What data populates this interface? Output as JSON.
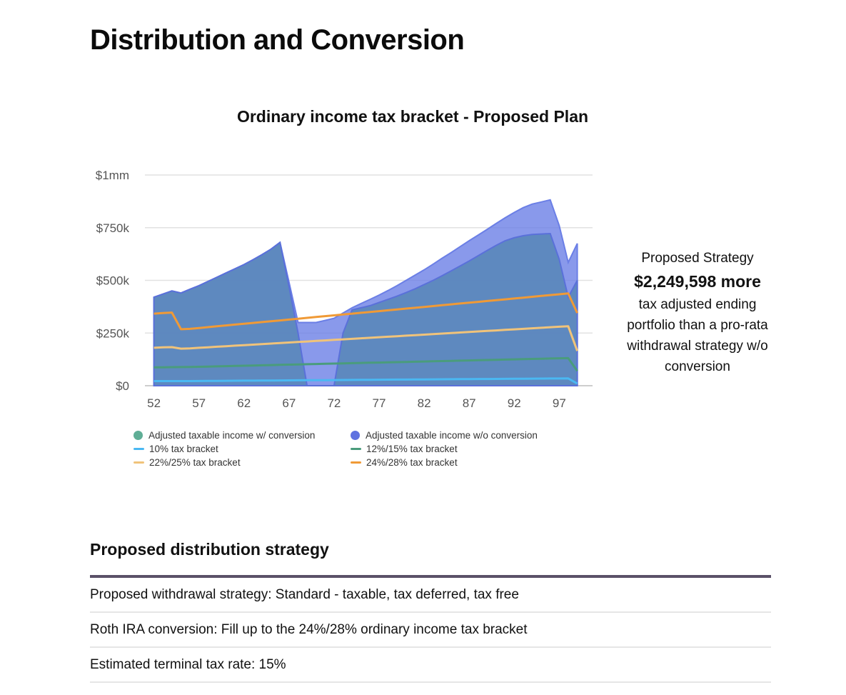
{
  "page": {
    "title": "Distribution and Conversion"
  },
  "chart_data": {
    "type": "area",
    "title": "Ordinary income tax bracket - Proposed Plan",
    "xlabel": "",
    "ylabel": "",
    "x": [
      52,
      53,
      54,
      55,
      56,
      57,
      58,
      59,
      60,
      61,
      62,
      63,
      64,
      65,
      66,
      67,
      68,
      69,
      70,
      71,
      72,
      73,
      74,
      75,
      76,
      77,
      78,
      79,
      80,
      81,
      82,
      83,
      84,
      85,
      86,
      87,
      88,
      89,
      90,
      91,
      92,
      93,
      94,
      95,
      96,
      97,
      98,
      99,
      100
    ],
    "xticks": [
      52,
      57,
      62,
      67,
      72,
      77,
      82,
      87,
      92,
      97
    ],
    "xtick_labels": [
      "52",
      "57",
      "62",
      "67",
      "72",
      "77",
      "82",
      "87",
      "92",
      "97"
    ],
    "yticks": [
      0,
      250000,
      500000,
      750000,
      1000000
    ],
    "ytick_labels": [
      "$0",
      "$250k",
      "$500k",
      "$750k",
      "$1mm"
    ],
    "ylim": [
      0,
      1000000
    ],
    "legend_position": "bottom",
    "series": [
      {
        "name": "Adjusted taxable income w/o conversion",
        "style": "area",
        "color": "#6b7fe6",
        "values": [
          420000,
          435000,
          450000,
          440000,
          458000,
          475000,
          495000,
          515000,
          535000,
          555000,
          575000,
          598000,
          622000,
          648000,
          680000,
          490000,
          300000,
          300000,
          300000,
          310000,
          320000,
          345000,
          370000,
          390000,
          410000,
          430000,
          452000,
          475000,
          500000,
          525000,
          550000,
          577000,
          605000,
          632000,
          660000,
          688000,
          715000,
          742000,
          770000,
          797000,
          822000,
          845000,
          862000,
          872000,
          882000,
          760000,
          585000,
          675000,
          null
        ]
      },
      {
        "name": "Adjusted taxable income w/ conversion",
        "style": "area",
        "color": "#5fae96",
        "values": [
          420000,
          435000,
          450000,
          440000,
          458000,
          475000,
          495000,
          515000,
          535000,
          555000,
          575000,
          598000,
          622000,
          648000,
          680000,
          470000,
          250000,
          0,
          0,
          0,
          0,
          250000,
          360000,
          370000,
          380000,
          395000,
          410000,
          425000,
          442000,
          460000,
          480000,
          500000,
          522000,
          545000,
          568000,
          592000,
          617000,
          642000,
          666000,
          688000,
          702000,
          712000,
          718000,
          720000,
          722000,
          600000,
          420000,
          500000,
          null
        ]
      },
      {
        "name": "10% tax bracket",
        "style": "line",
        "color": "#4ab8f2",
        "values": [
          22000,
          22000,
          22000,
          22000,
          22000,
          22500,
          22800,
          23000,
          23300,
          23600,
          23900,
          24200,
          24500,
          24800,
          25100,
          25400,
          25700,
          26000,
          26300,
          26600,
          26900,
          27200,
          27500,
          27800,
          28100,
          28400,
          28700,
          29000,
          29300,
          29600,
          29900,
          30200,
          30500,
          30800,
          31100,
          31400,
          31700,
          32000,
          32300,
          32600,
          32900,
          33200,
          33500,
          33800,
          34100,
          34400,
          34700,
          10000,
          null
        ]
      },
      {
        "name": "12%/15% tax bracket",
        "style": "line",
        "color": "#4a9c7c",
        "values": [
          87000,
          87500,
          88000,
          88500,
          89000,
          90000,
          91000,
          92000,
          93000,
          94000,
          95000,
          96000,
          97000,
          98000,
          99000,
          100000,
          101000,
          102000,
          103000,
          104000,
          105000,
          106000,
          107000,
          108000,
          109000,
          110000,
          111000,
          112000,
          113000,
          114000,
          115000,
          116000,
          117000,
          118000,
          119000,
          120000,
          121000,
          122000,
          123000,
          124000,
          125000,
          126000,
          127000,
          128000,
          129000,
          130000,
          131000,
          70000,
          null
        ]
      },
      {
        "name": "22%/25% tax bracket",
        "style": "line",
        "color": "#f0c37a",
        "values": [
          180000,
          182000,
          183000,
          176000,
          177000,
          180000,
          182500,
          185000,
          187500,
          190000,
          192500,
          195000,
          197500,
          200000,
          202500,
          205000,
          207500,
          210000,
          212500,
          215000,
          217500,
          220000,
          222500,
          225000,
          227500,
          230000,
          232500,
          235000,
          237500,
          240000,
          242500,
          245000,
          247500,
          250000,
          252500,
          255000,
          257500,
          260000,
          262500,
          265000,
          267500,
          270000,
          272500,
          275000,
          277500,
          280000,
          282500,
          165000,
          null
        ]
      },
      {
        "name": "24%/28% tax bracket",
        "style": "line",
        "color": "#f09a36",
        "values": [
          342000,
          345000,
          347000,
          268000,
          270000,
          274000,
          278000,
          282000,
          286000,
          290000,
          294000,
          298000,
          302000,
          306000,
          310000,
          314000,
          318000,
          322000,
          326000,
          330000,
          334000,
          338000,
          342000,
          346000,
          350000,
          354000,
          358000,
          362000,
          366000,
          370000,
          374000,
          378000,
          382000,
          386000,
          390000,
          394000,
          398000,
          402000,
          406000,
          410000,
          414000,
          418000,
          422000,
          426000,
          430000,
          434000,
          438000,
          345000,
          null
        ]
      }
    ],
    "legend": [
      {
        "label": "Adjusted taxable income w/ conversion",
        "marker": "dot",
        "color": "#5fae96"
      },
      {
        "label": "Adjusted taxable income w/o conversion",
        "marker": "dot",
        "color": "#5f72e0"
      },
      {
        "label": "10% tax bracket",
        "marker": "line",
        "color": "#4ab8f2"
      },
      {
        "label": "12%/15% tax bracket",
        "marker": "line",
        "color": "#4a9c7c"
      },
      {
        "label": "22%/25% tax bracket",
        "marker": "line",
        "color": "#f0c37a"
      },
      {
        "label": "24%/28% tax bracket",
        "marker": "line",
        "color": "#f09a36"
      }
    ]
  },
  "callout": {
    "heading": "Proposed Strategy",
    "amount": "$2,249,598 more",
    "description": "tax adjusted ending portfolio than a pro-rata withdrawal strategy w/o conversion"
  },
  "strategy": {
    "title": "Proposed distribution strategy",
    "rows": [
      "Proposed withdrawal strategy: Standard - taxable, tax deferred, tax free",
      "Roth IRA conversion: Fill up to the 24%/28% ordinary income tax bracket",
      "Estimated terminal tax rate: 15%"
    ]
  }
}
